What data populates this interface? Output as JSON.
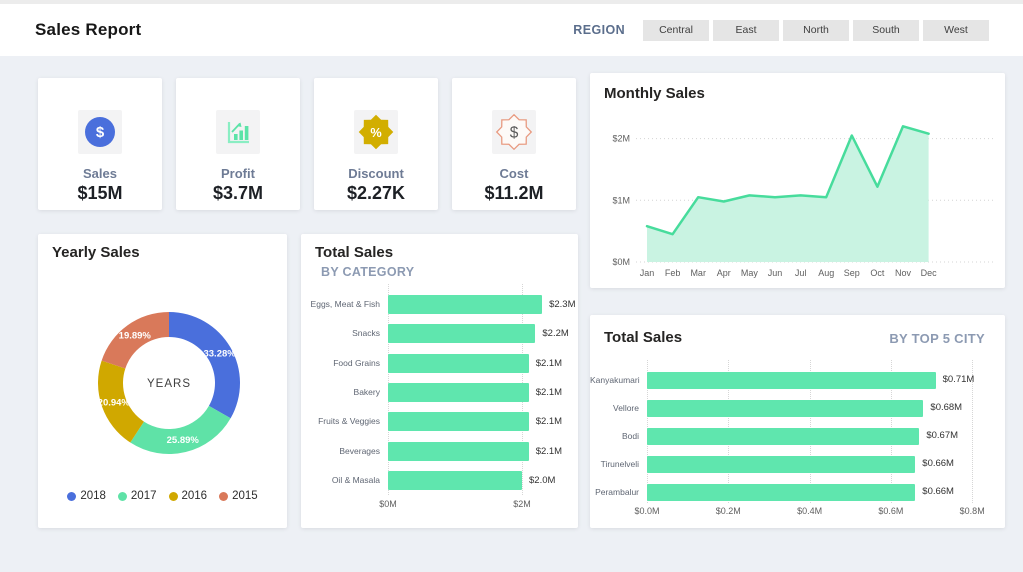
{
  "header": {
    "title": "Sales Report",
    "region_label": "REGION",
    "regions": [
      "Central",
      "East",
      "North",
      "South",
      "West"
    ]
  },
  "kpis": [
    {
      "label": "Sales",
      "value": "$15M",
      "icon": "dollar-circle-icon",
      "glyph": "$",
      "color": "#4a6fdc"
    },
    {
      "label": "Profit",
      "value": "$3.7M",
      "icon": "bar-growth-icon",
      "glyph": "",
      "color": "#5ce3a8"
    },
    {
      "label": "Discount",
      "value": "$2.27K",
      "icon": "percent-badge-icon",
      "glyph": "%",
      "color": "#d2ae00"
    },
    {
      "label": "Cost",
      "value": "$11.2M",
      "icon": "dollar-badge-icon",
      "glyph": "$",
      "color": "#e8997f"
    }
  ],
  "chart_data": [
    {
      "id": "yearly_sales",
      "type": "pie",
      "title": "Yearly Sales",
      "donut_center_label": "YEARS",
      "legend_position": "bottom",
      "label_format": "percent",
      "series": [
        {
          "name": "2018",
          "value": 33.28,
          "label": "33.28%",
          "color": "#4a6fdc"
        },
        {
          "name": "2017",
          "value": 25.89,
          "label": "25.89%",
          "color": "#5fe2a7"
        },
        {
          "name": "2016",
          "value": 20.94,
          "label": "20.94%",
          "color": "#d0a800"
        },
        {
          "name": "2015",
          "value": 19.89,
          "label": "19.89%",
          "color": "#d9795a"
        }
      ]
    },
    {
      "id": "category_sales",
      "type": "bar",
      "orientation": "horizontal",
      "title": "Total Sales",
      "subtitle": "BY CATEGORY",
      "categories": [
        "Eggs, Meat & Fish",
        "Snacks",
        "Food Grains",
        "Bakery",
        "Fruits & Veggies",
        "Beverages",
        "Oil & Masala"
      ],
      "values": [
        2.3,
        2.2,
        2.1,
        2.1,
        2.1,
        2.1,
        2.0
      ],
      "value_labels": [
        "$2.3M",
        "$2.2M",
        "$2.1M",
        "$2.1M",
        "$2.1M",
        "$2.1M",
        "$2.0M"
      ],
      "xticks": [
        {
          "value": 0,
          "label": "$0M"
        },
        {
          "value": 2,
          "label": "$2M"
        }
      ],
      "xlim": [
        0,
        2.4
      ],
      "bar_color": "#5fe6ae",
      "grid": "dotted"
    },
    {
      "id": "monthly_sales",
      "type": "area",
      "title": "Monthly Sales",
      "x": [
        "Jan",
        "Feb",
        "Mar",
        "Apr",
        "May",
        "Jun",
        "Jul",
        "Aug",
        "Sep",
        "Oct",
        "Nov",
        "Dec"
      ],
      "values": [
        0.58,
        0.45,
        1.05,
        0.98,
        1.08,
        1.05,
        1.08,
        1.05,
        2.05,
        1.22,
        2.2,
        2.08
      ],
      "yticks": [
        {
          "value": 0,
          "label": "$0M"
        },
        {
          "value": 1,
          "label": "$1M"
        },
        {
          "value": 2,
          "label": "$2M"
        }
      ],
      "ylim": [
        0,
        2.36
      ],
      "line_color": "#47dc9c",
      "fill_color": "#c9f3e2",
      "grid": "dotted"
    },
    {
      "id": "city_sales",
      "type": "bar",
      "orientation": "horizontal",
      "title": "Total Sales",
      "subtitle": "BY TOP 5 CITY",
      "categories": [
        "Kanyakumari",
        "Vellore",
        "Bodi",
        "Tirunelveli",
        "Perambalur"
      ],
      "values": [
        0.71,
        0.68,
        0.67,
        0.66,
        0.66
      ],
      "value_labels": [
        "$0.71M",
        "$0.68M",
        "$0.67M",
        "$0.66M",
        "$0.66M"
      ],
      "xticks": [
        {
          "value": 0.0,
          "label": "$0.0M"
        },
        {
          "value": 0.2,
          "label": "$0.2M"
        },
        {
          "value": 0.4,
          "label": "$0.4M"
        },
        {
          "value": 0.6,
          "label": "$0.6M"
        },
        {
          "value": 0.8,
          "label": "$0.8M"
        }
      ],
      "xlim": [
        0,
        0.8
      ],
      "bar_color": "#5fe6ae",
      "grid": "dotted"
    }
  ]
}
